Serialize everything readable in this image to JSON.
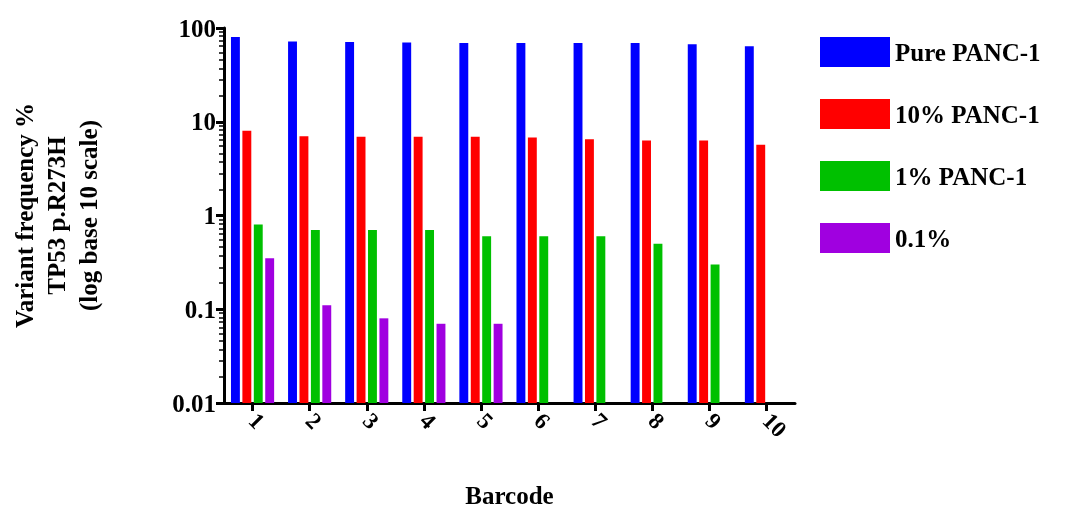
{
  "chart_data": {
    "type": "bar",
    "xlabel": "Barcode",
    "ylabel": "Variant frequency %\nTP53 p.R273H\n(log base 10 scale)",
    "categories": [
      "1",
      "2",
      "3",
      "4",
      "5",
      "6",
      "7",
      "8",
      "9",
      "10"
    ],
    "series": [
      {
        "name": "Pure PANC-1",
        "color": "#0000ff",
        "values": [
          80,
          72,
          71,
          70,
          69,
          69,
          69,
          69,
          67,
          64
        ]
      },
      {
        "name": "10% PANC-1",
        "color": "#ff0000",
        "values": [
          8,
          7,
          6.9,
          6.9,
          6.9,
          6.8,
          6.5,
          6.3,
          6.3,
          5.7
        ]
      },
      {
        "name": "1% PANC-1",
        "color": "#00c000",
        "values": [
          0.8,
          0.7,
          0.7,
          0.7,
          0.6,
          0.6,
          0.6,
          0.5,
          0.3,
          null
        ]
      },
      {
        "name": "0.1%",
        "color": "#a000e0",
        "values": [
          0.35,
          0.11,
          0.08,
          0.07,
          0.07,
          null,
          null,
          null,
          null,
          null
        ]
      }
    ],
    "log": "y",
    "ylim": [
      0.01,
      100
    ],
    "yticks": [
      0.01,
      0.1,
      1,
      10,
      100
    ],
    "grid": false,
    "legend": "top right"
  }
}
